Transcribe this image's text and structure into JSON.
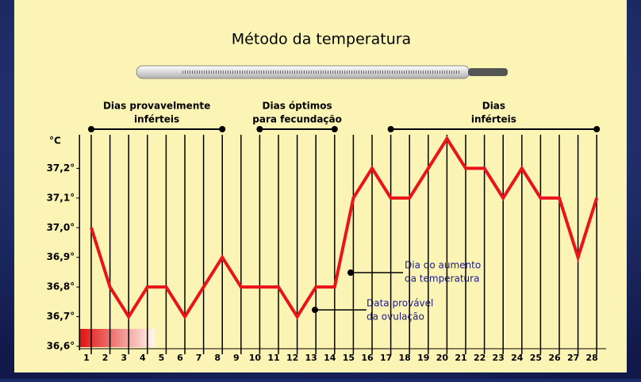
{
  "chart_data": {
    "type": "line",
    "title": "Método da temperatura",
    "y_label": "°C",
    "x": [
      1,
      2,
      3,
      4,
      5,
      6,
      7,
      8,
      9,
      10,
      11,
      12,
      13,
      14,
      15,
      16,
      17,
      18,
      19,
      20,
      21,
      22,
      23,
      24,
      25,
      26,
      27,
      28
    ],
    "values": [
      37.0,
      36.8,
      36.7,
      36.8,
      36.8,
      36.7,
      36.8,
      36.9,
      36.8,
      36.8,
      36.8,
      36.7,
      36.8,
      36.8,
      37.1,
      37.2,
      37.1,
      37.1,
      37.2,
      37.3,
      37.2,
      37.2,
      37.1,
      37.2,
      37.1,
      37.1,
      36.9,
      37.1
    ],
    "color": "#e8141a",
    "xlim": [
      0.5,
      28.5
    ],
    "xticks": [
      1,
      2,
      3,
      4,
      5,
      6,
      7,
      8,
      9,
      10,
      11,
      12,
      13,
      14,
      15,
      16,
      17,
      18,
      19,
      20,
      21,
      22,
      23,
      24,
      25,
      26,
      27,
      28
    ],
    "ylim": [
      36.6,
      37.3
    ],
    "yticks": [
      {
        "value": 36.6,
        "label": "36,6°"
      },
      {
        "value": 36.7,
        "label": "36,7°"
      },
      {
        "value": 36.8,
        "label": "36,8°"
      },
      {
        "value": 36.9,
        "label": "36,9°"
      },
      {
        "value": 37.0,
        "label": "37,0°"
      },
      {
        "value": 37.1,
        "label": "37,1°"
      },
      {
        "value": 37.2,
        "label": "37,2°"
      }
    ],
    "phases": [
      {
        "label": [
          "Dias provavelmente",
          "inférteis"
        ],
        "start": 1,
        "end": 8
      },
      {
        "label": [
          "Dias óptimos",
          "para fecundação"
        ],
        "start": 10,
        "end": 14
      },
      {
        "label": [
          "Dias",
          "inférteis"
        ],
        "start": 17,
        "end": 28
      }
    ],
    "callouts": [
      {
        "text": [
          "Dia do aumento",
          "da temperatura"
        ]
      },
      {
        "text": [
          "Data provável",
          "da ovulação"
        ]
      }
    ]
  }
}
